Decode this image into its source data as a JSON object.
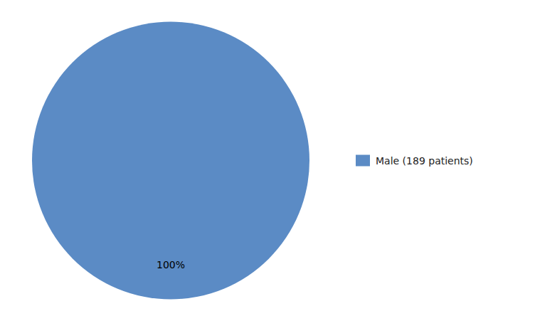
{
  "chart_data": {
    "type": "pie",
    "categories": [
      "Male (189 patients)"
    ],
    "values": [
      100
    ],
    "value_labels": [
      "100%"
    ],
    "colors": [
      "#5b8bc5"
    ],
    "data_labels": true,
    "legend": "right"
  }
}
